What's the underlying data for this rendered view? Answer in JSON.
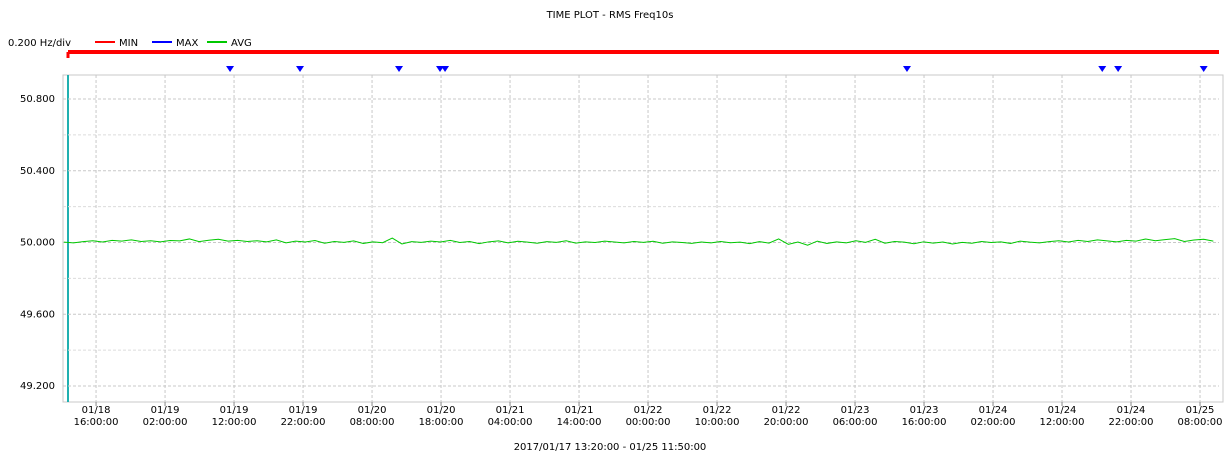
{
  "chart_data": {
    "type": "line",
    "title": "TIME PLOT - RMS  Freq10s",
    "scale_label": "0.200 Hz/div",
    "footer": "2017/01/17 13:20:00 - 01/25 11:50:00",
    "markers": [
      {
        "name": "MIN",
        "color": "#ff0000"
      },
      {
        "name": "MAX",
        "color": "#0000ff",
        "x": [
          46.09,
          56.23,
          70.58,
          76.52,
          77.25,
          144.2,
          172.5,
          174.8,
          187.2
        ]
      }
    ],
    "x": [
      22,
      23.4,
      24.8,
      26.2,
      27.6,
      29,
      30.4,
      31.8,
      33.2,
      34.6,
      36,
      37.4,
      38.8,
      40.2,
      41.6,
      43,
      44.4,
      45.8,
      47.2,
      48.6,
      50,
      51.4,
      52.8,
      54.2,
      55.6,
      57,
      58.4,
      59.8,
      61.2,
      62.6,
      64,
      65.4,
      66.8,
      68.2,
      69.6,
      71,
      72.4,
      73.8,
      75.2,
      76.6,
      78,
      79.4,
      80.8,
      82.2,
      83.6,
      85,
      86.4,
      87.8,
      89.2,
      90.6,
      92,
      93.4,
      94.8,
      96.2,
      97.6,
      99,
      100.4,
      101.8,
      103.2,
      104.6,
      106,
      107.4,
      108.8,
      110.2,
      111.6,
      113,
      114.4,
      115.8,
      117.2,
      118.6,
      120,
      121.4,
      122.8,
      124.2,
      125.6,
      127,
      128.4,
      129.8,
      131.2,
      132.6,
      134,
      135.4,
      136.8,
      138.2,
      139.6,
      141,
      142.4,
      143.8,
      145.2,
      146.6,
      148,
      149.4,
      150.8,
      152.2,
      153.6,
      155,
      156.4,
      157.8,
      159.2,
      160.6,
      162,
      163.4,
      164.8,
      166.2,
      167.6,
      169,
      170.4,
      171.8,
      173.2,
      174.6,
      176,
      177.4,
      178.8,
      180.2,
      181.6,
      183,
      184.4,
      185.8,
      187.2,
      188.6
    ],
    "series": [
      {
        "name": "AVG",
        "color": "#00c800",
        "values": [
          50.002,
          49.998,
          50.005,
          50.01,
          50.003,
          50.012,
          50.008,
          50.015,
          50.006,
          50.01,
          50.004,
          50.011,
          50.009,
          50.02,
          50.005,
          50.013,
          50.018,
          50.008,
          50.012,
          50.006,
          50.01,
          50.004,
          50.015,
          49.998,
          50.008,
          50.003,
          50.011,
          49.996,
          50.006,
          50.001,
          50.009,
          49.995,
          50.004,
          49.999,
          50.025,
          49.992,
          50.005,
          50.001,
          50.008,
          50.003,
          50.012,
          50.0,
          50.006,
          49.994,
          50.004,
          50.009,
          49.998,
          50.007,
          50.002,
          49.996,
          50.005,
          50.001,
          50.01,
          49.997,
          50.004,
          50.0,
          50.008,
          50.003,
          49.998,
          50.006,
          50.001,
          50.007,
          49.996,
          50.004,
          50.0,
          49.995,
          50.003,
          49.998,
          50.006,
          49.999,
          50.002,
          49.994,
          50.005,
          49.997,
          50.02,
          49.99,
          50.003,
          49.985,
          50.008,
          49.995,
          50.004,
          49.998,
          50.01,
          50.001,
          50.018,
          49.996,
          50.006,
          50.002,
          49.993,
          50.004,
          49.997,
          50.003,
          49.992,
          50.001,
          49.996,
          50.006,
          50.0,
          50.004,
          49.995,
          50.008,
          50.002,
          49.998,
          50.005,
          50.01,
          50.003,
          50.012,
          50.006,
          50.015,
          50.009,
          50.004,
          50.012,
          50.008,
          50.02,
          50.01,
          50.016,
          50.022,
          50.006,
          50.014,
          50.018,
          50.008
        ]
      }
    ],
    "xlim": [
      21.88,
      189.42
    ],
    "xticks": [
      {
        "value": 26.67,
        "label": "01/18 16:00:00"
      },
      {
        "value": 36.67,
        "label": "01/19 02:00:00"
      },
      {
        "value": 46.67,
        "label": "01/19 12:00:00"
      },
      {
        "value": 56.67,
        "label": "01/19 22:00:00"
      },
      {
        "value": 66.67,
        "label": "01/20 08:00:00"
      },
      {
        "value": 76.67,
        "label": "01/20 18:00:00"
      },
      {
        "value": 86.67,
        "label": "01/21 04:00:00"
      },
      {
        "value": 96.67,
        "label": "01/21 14:00:00"
      },
      {
        "value": 106.67,
        "label": "01/22 00:00:00"
      },
      {
        "value": 116.67,
        "label": "01/22 10:00:00"
      },
      {
        "value": 126.67,
        "label": "01/22 20:00:00"
      },
      {
        "value": 136.67,
        "label": "01/23 06:00:00"
      },
      {
        "value": 146.67,
        "label": "01/23 16:00:00"
      },
      {
        "value": 156.67,
        "label": "01/24 02:00:00"
      },
      {
        "value": 166.67,
        "label": "01/24 12:00:00"
      },
      {
        "value": 176.67,
        "label": "01/24 22:00:00"
      },
      {
        "value": 186.67,
        "label": "01/25 08:00:00"
      }
    ],
    "ylim": [
      49.111,
      50.934
    ],
    "yticks": [
      {
        "value": 49.2,
        "label": "49.200"
      },
      {
        "value": 49.6,
        "label": "49.600"
      },
      {
        "value": 50.0,
        "label": "50.000"
      },
      {
        "value": 50.4,
        "label": "50.400"
      },
      {
        "value": 50.8,
        "label": "50.800"
      }
    ],
    "grid": true
  }
}
